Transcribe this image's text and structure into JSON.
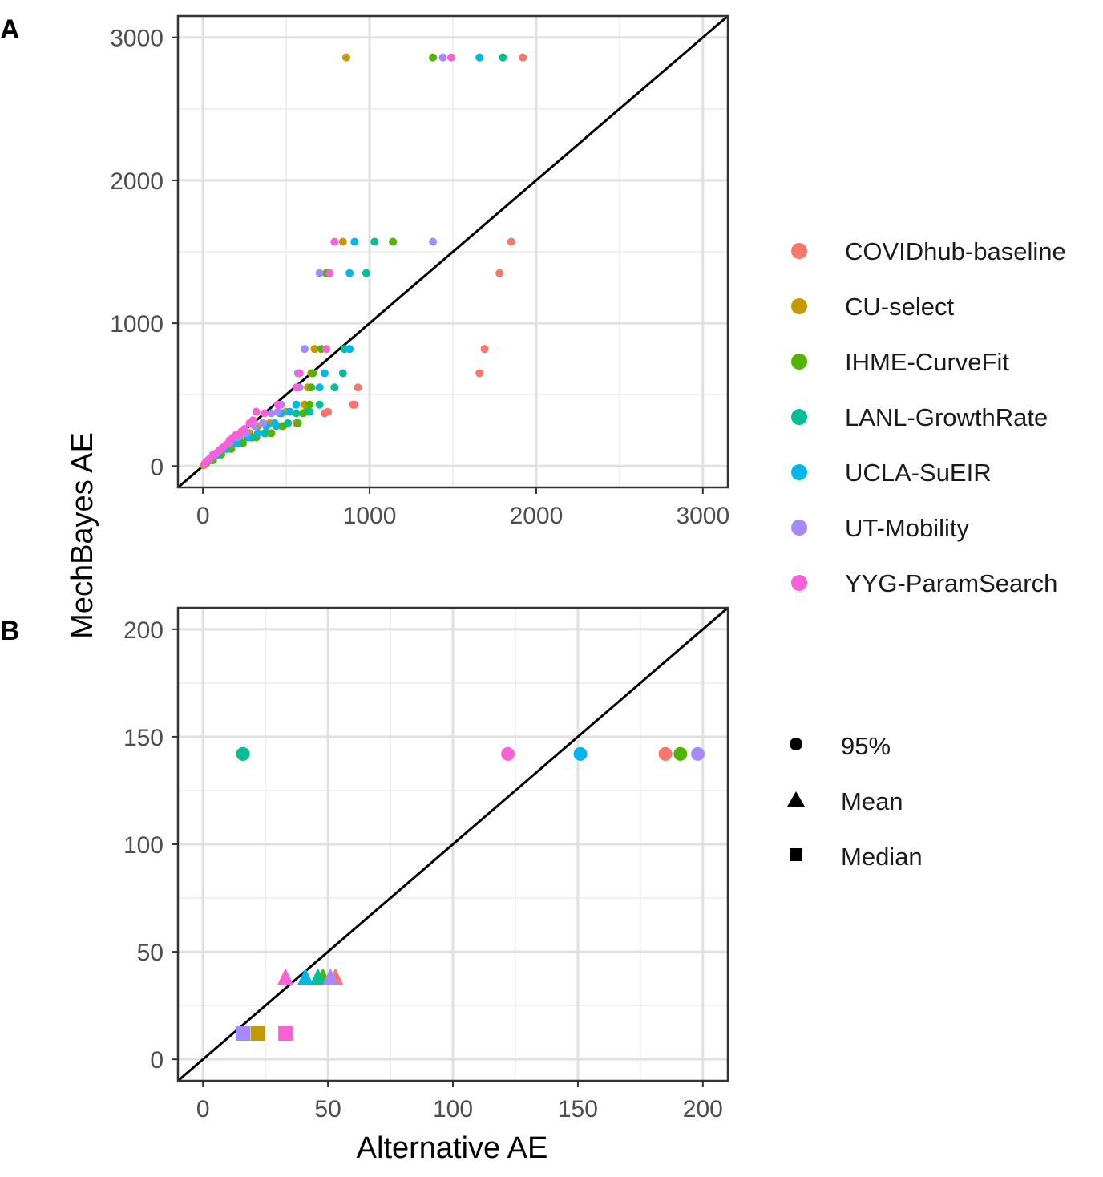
{
  "figure": {
    "ylabel": "MechBayes AE",
    "xlabel": "Alternative AE"
  },
  "colors": {
    "COVIDhub-baseline": "#F8766D",
    "CU-select": "#C49A00",
    "IHME-CurveFit": "#53B400",
    "LANL-GrowthRate": "#00C094",
    "UCLA-SuEIR": "#00B6EB",
    "UT-Mobility": "#A58AFF",
    "YYG-ParamSearch": "#FB61D7"
  },
  "legend_models": {
    "items": [
      "COVIDhub-baseline",
      "CU-select",
      "IHME-CurveFit",
      "LANL-GrowthRate",
      "UCLA-SuEIR",
      "UT-Mobility",
      "YYG-ParamSearch"
    ]
  },
  "legend_stats": {
    "items": [
      {
        "label": "95%",
        "shape": "circle"
      },
      {
        "label": "Mean",
        "shape": "triangle"
      },
      {
        "label": "Median",
        "shape": "square"
      }
    ]
  },
  "chart_data": [
    {
      "panel": "A",
      "type": "scatter",
      "xlim": [
        -150,
        3150
      ],
      "ylim": [
        -150,
        3150
      ],
      "xticks": [
        0,
        1000,
        2000,
        3000
      ],
      "yticks": [
        0,
        1000,
        2000,
        3000
      ],
      "grid": true,
      "reference_line": "y = x",
      "series": [
        {
          "name": "COVIDhub-baseline",
          "points": [
            [
              1920,
              2860
            ],
            [
              1850,
              1570
            ],
            [
              1780,
              1350
            ],
            [
              1690,
              820
            ],
            [
              1660,
              650
            ],
            [
              930,
              550
            ],
            [
              910,
              430
            ],
            [
              900,
              430
            ],
            [
              750,
              380
            ],
            [
              730,
              370
            ],
            [
              560,
              300
            ],
            [
              470,
              280
            ],
            [
              380,
              230
            ],
            [
              300,
              200
            ],
            [
              220,
              160
            ],
            [
              150,
              120
            ],
            [
              90,
              80
            ],
            [
              40,
              40
            ],
            [
              10,
              10
            ]
          ]
        },
        {
          "name": "CU-select",
          "points": [
            [
              860,
              2860
            ],
            [
              840,
              1570
            ],
            [
              760,
              1350
            ],
            [
              670,
              820
            ],
            [
              650,
              650
            ],
            [
              630,
              550
            ],
            [
              610,
              430
            ],
            [
              500,
              380
            ],
            [
              460,
              370
            ],
            [
              400,
              300
            ],
            [
              330,
              280
            ],
            [
              280,
              230
            ],
            [
              220,
              200
            ],
            [
              170,
              160
            ],
            [
              120,
              120
            ],
            [
              70,
              80
            ],
            [
              40,
              40
            ],
            [
              20,
              20
            ],
            [
              5,
              5
            ]
          ]
        },
        {
          "name": "IHME-CurveFit",
          "points": [
            [
              1380,
              2860
            ],
            [
              1140,
              1570
            ],
            [
              740,
              1350
            ],
            [
              710,
              820
            ],
            [
              660,
              650
            ],
            [
              650,
              550
            ],
            [
              640,
              430
            ],
            [
              620,
              380
            ],
            [
              600,
              370
            ],
            [
              570,
              300
            ],
            [
              480,
              280
            ],
            [
              410,
              230
            ],
            [
              320,
              200
            ],
            [
              240,
              160
            ],
            [
              170,
              120
            ],
            [
              110,
              80
            ],
            [
              60,
              40
            ],
            [
              20,
              20
            ]
          ]
        },
        {
          "name": "LANL-GrowthRate",
          "points": [
            [
              1800,
              2860
            ],
            [
              1030,
              1570
            ],
            [
              980,
              1350
            ],
            [
              850,
              820
            ],
            [
              840,
              650
            ],
            [
              790,
              550
            ],
            [
              700,
              430
            ],
            [
              640,
              380
            ],
            [
              560,
              370
            ],
            [
              510,
              300
            ],
            [
              440,
              280
            ],
            [
              370,
              230
            ],
            [
              290,
              200
            ],
            [
              210,
              160
            ],
            [
              140,
              120
            ],
            [
              90,
              80
            ],
            [
              40,
              40
            ]
          ]
        },
        {
          "name": "UCLA-SuEIR",
          "points": [
            [
              1660,
              2860
            ],
            [
              910,
              1570
            ],
            [
              880,
              1350
            ],
            [
              880,
              820
            ],
            [
              730,
              650
            ],
            [
              700,
              550
            ],
            [
              560,
              430
            ],
            [
              520,
              380
            ],
            [
              470,
              370
            ],
            [
              430,
              300
            ],
            [
              380,
              280
            ],
            [
              330,
              230
            ],
            [
              270,
              200
            ],
            [
              200,
              160
            ],
            [
              130,
              120
            ],
            [
              80,
              80
            ],
            [
              30,
              40
            ]
          ]
        },
        {
          "name": "UT-Mobility",
          "points": [
            [
              1440,
              2860
            ],
            [
              1380,
              1570
            ],
            [
              700,
              1350
            ],
            [
              610,
              820
            ],
            [
              570,
              650
            ],
            [
              580,
              550
            ],
            [
              470,
              430
            ],
            [
              450,
              380
            ],
            [
              410,
              370
            ],
            [
              360,
              300
            ],
            [
              310,
              280
            ],
            [
              260,
              230
            ],
            [
              210,
              200
            ],
            [
              160,
              160
            ],
            [
              110,
              120
            ],
            [
              60,
              80
            ],
            [
              30,
              40
            ]
          ]
        },
        {
          "name": "YYG-ParamSearch",
          "points": [
            [
              1490,
              2860
            ],
            [
              790,
              1570
            ],
            [
              760,
              1350
            ],
            [
              740,
              820
            ],
            [
              580,
              650
            ],
            [
              560,
              550
            ],
            [
              450,
              430
            ],
            [
              320,
              380
            ],
            [
              370,
              370
            ],
            [
              300,
              320
            ],
            [
              280,
              300
            ],
            [
              250,
              260
            ],
            [
              230,
              240
            ],
            [
              200,
              220
            ],
            [
              180,
              200
            ],
            [
              160,
              180
            ],
            [
              140,
              150
            ],
            [
              120,
              130
            ],
            [
              100,
              110
            ],
            [
              80,
              90
            ],
            [
              60,
              70
            ],
            [
              40,
              50
            ],
            [
              20,
              30
            ],
            [
              10,
              15
            ]
          ]
        }
      ]
    },
    {
      "panel": "B",
      "type": "scatter",
      "xlim": [
        -10,
        210
      ],
      "ylim": [
        -10,
        210
      ],
      "xticks": [
        0,
        50,
        100,
        150,
        200
      ],
      "yticks": [
        0,
        50,
        100,
        150,
        200
      ],
      "grid": true,
      "reference_line": "y = x",
      "series": [
        {
          "name": "COVIDhub-baseline",
          "points": [
            {
              "x": 185,
              "y": 142,
              "stat": "95%"
            },
            {
              "x": 53,
              "y": 38,
              "stat": "Mean"
            },
            {
              "x": 16,
              "y": 12,
              "stat": "Median"
            }
          ]
        },
        {
          "name": "CU-select",
          "points": [
            {
              "x": 16,
              "y": 142,
              "stat": "95%"
            },
            {
              "x": 48,
              "y": 38,
              "stat": "Mean"
            },
            {
              "x": 22,
              "y": 12,
              "stat": "Median"
            }
          ]
        },
        {
          "name": "IHME-CurveFit",
          "points": [
            {
              "x": 191,
              "y": 142,
              "stat": "95%"
            },
            {
              "x": 48,
              "y": 38,
              "stat": "Mean"
            },
            {
              "x": 16,
              "y": 12,
              "stat": "Median"
            }
          ]
        },
        {
          "name": "LANL-GrowthRate",
          "points": [
            {
              "x": 16,
              "y": 142,
              "stat": "95%"
            },
            {
              "x": 46,
              "y": 38,
              "stat": "Mean"
            },
            {
              "x": 16,
              "y": 12,
              "stat": "Median"
            }
          ]
        },
        {
          "name": "UCLA-SuEIR",
          "points": [
            {
              "x": 151,
              "y": 142,
              "stat": "95%"
            },
            {
              "x": 41,
              "y": 38,
              "stat": "Mean"
            },
            {
              "x": 16,
              "y": 12,
              "stat": "Median"
            }
          ]
        },
        {
          "name": "UT-Mobility",
          "points": [
            {
              "x": 198,
              "y": 142,
              "stat": "95%"
            },
            {
              "x": 51,
              "y": 38,
              "stat": "Mean"
            },
            {
              "x": 16,
              "y": 12,
              "stat": "Median"
            }
          ]
        },
        {
          "name": "YYG-ParamSearch",
          "points": [
            {
              "x": 122,
              "y": 142,
              "stat": "95%"
            },
            {
              "x": 33,
              "y": 38,
              "stat": "Mean"
            },
            {
              "x": 33,
              "y": 12,
              "stat": "Median"
            }
          ]
        }
      ]
    }
  ]
}
